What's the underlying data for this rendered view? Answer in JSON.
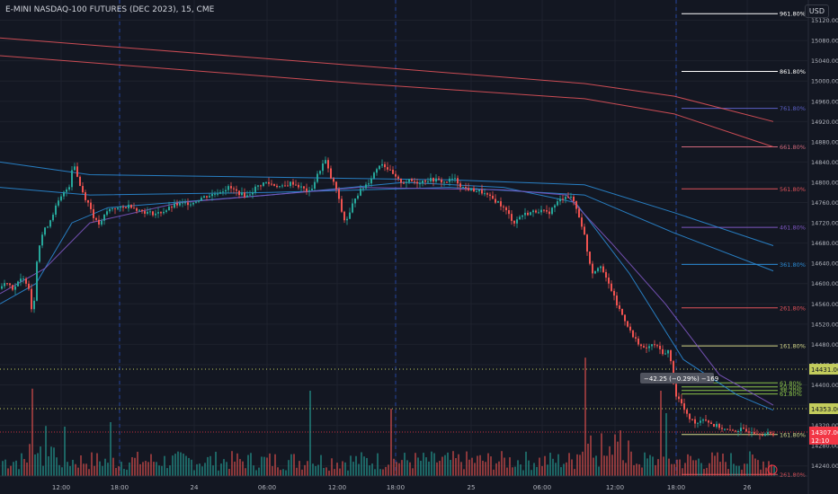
{
  "header": {
    "title": "E-MINI NASDAQ-100 FUTURES (DEC 2023), 15, CME",
    "currency": "USD"
  },
  "chart_data": {
    "type": "candlestick",
    "ylim": [
      14220,
      15160
    ],
    "price_ticks": [
      "15120.00",
      "15080.00",
      "15040.00",
      "15000.00",
      "14960.00",
      "14920.00",
      "14880.00",
      "14840.00",
      "14800.00",
      "14760.00",
      "14720.00",
      "14680.00",
      "14640.00",
      "14600.00",
      "14560.00",
      "14520.00",
      "14480.00",
      "14440.00",
      "14400.00",
      "14360.00",
      "14320.00",
      "14280.00",
      "14240.00"
    ],
    "time_labels": [
      "12:00",
      "18:00",
      "24",
      "06:00",
      "12:00",
      "18:00",
      "25",
      "06:00",
      "12:00",
      "18:00",
      "26"
    ],
    "close_path": [
      [
        0,
        14590
      ],
      [
        8,
        14605
      ],
      [
        15,
        14590
      ],
      [
        25,
        14610
      ],
      [
        32,
        14600
      ],
      [
        37,
        14530
      ],
      [
        42,
        14660
      ],
      [
        48,
        14700
      ],
      [
        55,
        14720
      ],
      [
        62,
        14750
      ],
      [
        70,
        14775
      ],
      [
        78,
        14795
      ],
      [
        82,
        14845
      ],
      [
        88,
        14800
      ],
      [
        95,
        14770
      ],
      [
        100,
        14755
      ],
      [
        106,
        14725
      ],
      [
        112,
        14715
      ],
      [
        118,
        14740
      ],
      [
        125,
        14750
      ],
      [
        135,
        14748
      ],
      [
        145,
        14755
      ],
      [
        155,
        14745
      ],
      [
        165,
        14740
      ],
      [
        175,
        14738
      ],
      [
        185,
        14745
      ],
      [
        195,
        14755
      ],
      [
        205,
        14758
      ],
      [
        215,
        14760
      ],
      [
        225,
        14770
      ],
      [
        235,
        14775
      ],
      [
        245,
        14782
      ],
      [
        255,
        14790
      ],
      [
        265,
        14780
      ],
      [
        275,
        14772
      ],
      [
        285,
        14790
      ],
      [
        295,
        14800
      ],
      [
        305,
        14795
      ],
      [
        315,
        14790
      ],
      [
        325,
        14800
      ],
      [
        335,
        14790
      ],
      [
        345,
        14780
      ],
      [
        355,
        14820
      ],
      [
        362,
        14845
      ],
      [
        368,
        14810
      ],
      [
        374,
        14790
      ],
      [
        378,
        14760
      ],
      [
        383,
        14725
      ],
      [
        388,
        14730
      ],
      [
        395,
        14770
      ],
      [
        402,
        14785
      ],
      [
        410,
        14800
      ],
      [
        417,
        14820
      ],
      [
        424,
        14840
      ],
      [
        430,
        14830
      ],
      [
        436,
        14818
      ],
      [
        442,
        14805
      ],
      [
        448,
        14800
      ],
      [
        455,
        14803
      ],
      [
        465,
        14800
      ],
      [
        475,
        14805
      ],
      [
        485,
        14805
      ],
      [
        495,
        14800
      ],
      [
        505,
        14808
      ],
      [
        515,
        14790
      ],
      [
        525,
        14785
      ],
      [
        535,
        14782
      ],
      [
        545,
        14770
      ],
      [
        555,
        14760
      ],
      [
        565,
        14740
      ],
      [
        572,
        14720
      ],
      [
        580,
        14735
      ],
      [
        590,
        14740
      ],
      [
        600,
        14745
      ],
      [
        610,
        14738
      ],
      [
        620,
        14760
      ],
      [
        630,
        14775
      ],
      [
        638,
        14765
      ],
      [
        645,
        14730
      ],
      [
        650,
        14700
      ],
      [
        655,
        14650
      ],
      [
        660,
        14620
      ],
      [
        668,
        14640
      ],
      [
        674,
        14610
      ],
      [
        680,
        14590
      ],
      [
        686,
        14560
      ],
      [
        692,
        14540
      ],
      [
        698,
        14520
      ],
      [
        704,
        14495
      ],
      [
        710,
        14485
      ],
      [
        716,
        14470
      ],
      [
        722,
        14475
      ],
      [
        728,
        14480
      ],
      [
        734,
        14470
      ],
      [
        740,
        14460
      ],
      [
        745,
        14470
      ],
      [
        748,
        14420
      ],
      [
        752,
        14380
      ],
      [
        758,
        14365
      ],
      [
        764,
        14340
      ],
      [
        770,
        14330
      ],
      [
        776,
        14325
      ],
      [
        782,
        14335
      ],
      [
        788,
        14328
      ],
      [
        794,
        14320
      ],
      [
        800,
        14318
      ],
      [
        806,
        14312
      ],
      [
        812,
        14308
      ],
      [
        818,
        14310
      ],
      [
        824,
        14312
      ],
      [
        830,
        14308
      ],
      [
        836,
        14310
      ],
      [
        842,
        14306
      ],
      [
        848,
        14304
      ],
      [
        855,
        14303
      ],
      [
        860,
        14302
      ]
    ],
    "moving_averages": [
      {
        "color": "#e0525a",
        "path": [
          [
            0,
            15085
          ],
          [
            400,
            15030
          ],
          [
            650,
            14995
          ],
          [
            750,
            14970
          ],
          [
            860,
            14920
          ]
        ]
      },
      {
        "color": "#e0525a",
        "path": [
          [
            0,
            15050
          ],
          [
            400,
            14995
          ],
          [
            650,
            14965
          ],
          [
            750,
            14935
          ],
          [
            860,
            14870
          ]
        ]
      },
      {
        "color": "#2a8ad4",
        "path": [
          [
            0,
            14840
          ],
          [
            100,
            14815
          ],
          [
            300,
            14810
          ],
          [
            500,
            14805
          ],
          [
            650,
            14795
          ],
          [
            750,
            14740
          ],
          [
            860,
            14675
          ]
        ]
      },
      {
        "color": "#2a8ad4",
        "path": [
          [
            0,
            14790
          ],
          [
            100,
            14775
          ],
          [
            300,
            14780
          ],
          [
            500,
            14790
          ],
          [
            650,
            14775
          ],
          [
            750,
            14700
          ],
          [
            860,
            14625
          ]
        ]
      },
      {
        "color": "#2a8ad4",
        "path": [
          [
            0,
            14560
          ],
          [
            40,
            14600
          ],
          [
            80,
            14720
          ],
          [
            120,
            14750
          ],
          [
            300,
            14775
          ],
          [
            450,
            14800
          ],
          [
            560,
            14790
          ],
          [
            640,
            14760
          ],
          [
            700,
            14620
          ],
          [
            760,
            14450
          ],
          [
            820,
            14380
          ],
          [
            860,
            14350
          ]
        ]
      },
      {
        "color": "#7e57c2",
        "path": [
          [
            0,
            14580
          ],
          [
            50,
            14630
          ],
          [
            100,
            14720
          ],
          [
            200,
            14760
          ],
          [
            400,
            14790
          ],
          [
            560,
            14785
          ],
          [
            630,
            14775
          ],
          [
            680,
            14680
          ],
          [
            740,
            14560
          ],
          [
            800,
            14420
          ],
          [
            860,
            14360
          ]
        ]
      }
    ],
    "fib_levels": [
      {
        "label": "961.80%",
        "value": 15133,
        "color": "#ffffff"
      },
      {
        "label": "861.80%",
        "value": 15019,
        "color": "#ffffff"
      },
      {
        "label": "761.80%",
        "value": 14946,
        "color": "#5b5fc7"
      },
      {
        "label": "661.80%",
        "value": 14870,
        "color": "#d0697c"
      },
      {
        "label": "561.80%",
        "value": 14787,
        "color": "#e0525a"
      },
      {
        "label": "461.80%",
        "value": 14711,
        "color": "#7e57c2"
      },
      {
        "label": "361.80%",
        "value": 14638,
        "color": "#2a8ad4"
      },
      {
        "label": "261.80%",
        "value": 14552,
        "color": "#e0525a"
      },
      {
        "label": "161.80%",
        "value": 14477,
        "color": "#d6d98a"
      },
      {
        "label": "61.80%",
        "value": 14404,
        "color": "#8bc34a"
      },
      {
        "label": "50.00%",
        "value": 14396,
        "color": "#8bc34a"
      },
      {
        "label": "38.20%",
        "value": 14389,
        "color": "#8bc34a"
      },
      {
        "label": "61.80%",
        "value": 14382,
        "color": "#8bc34a"
      },
      {
        "label": "161.80%",
        "value": 14302,
        "color": "#d6d98a"
      },
      {
        "label": "261.80%",
        "value": 14223,
        "color": "#e0525a"
      }
    ],
    "horizontal_levels": [
      {
        "value": 14431,
        "label": "14431.00",
        "color": "#c3cc5c"
      },
      {
        "value": 14353,
        "label": "14353.00",
        "color": "#c3cc5c"
      }
    ],
    "last_price": {
      "value": 14307,
      "label": "14307.00",
      "countdown": "12:10",
      "color": "#f23645"
    },
    "measure_label": "−42.25 (−0.29%) −169",
    "colors": {
      "up": "#26a69a",
      "down": "#ef5350",
      "background": "#131722",
      "grid": "#1e222d"
    }
  }
}
